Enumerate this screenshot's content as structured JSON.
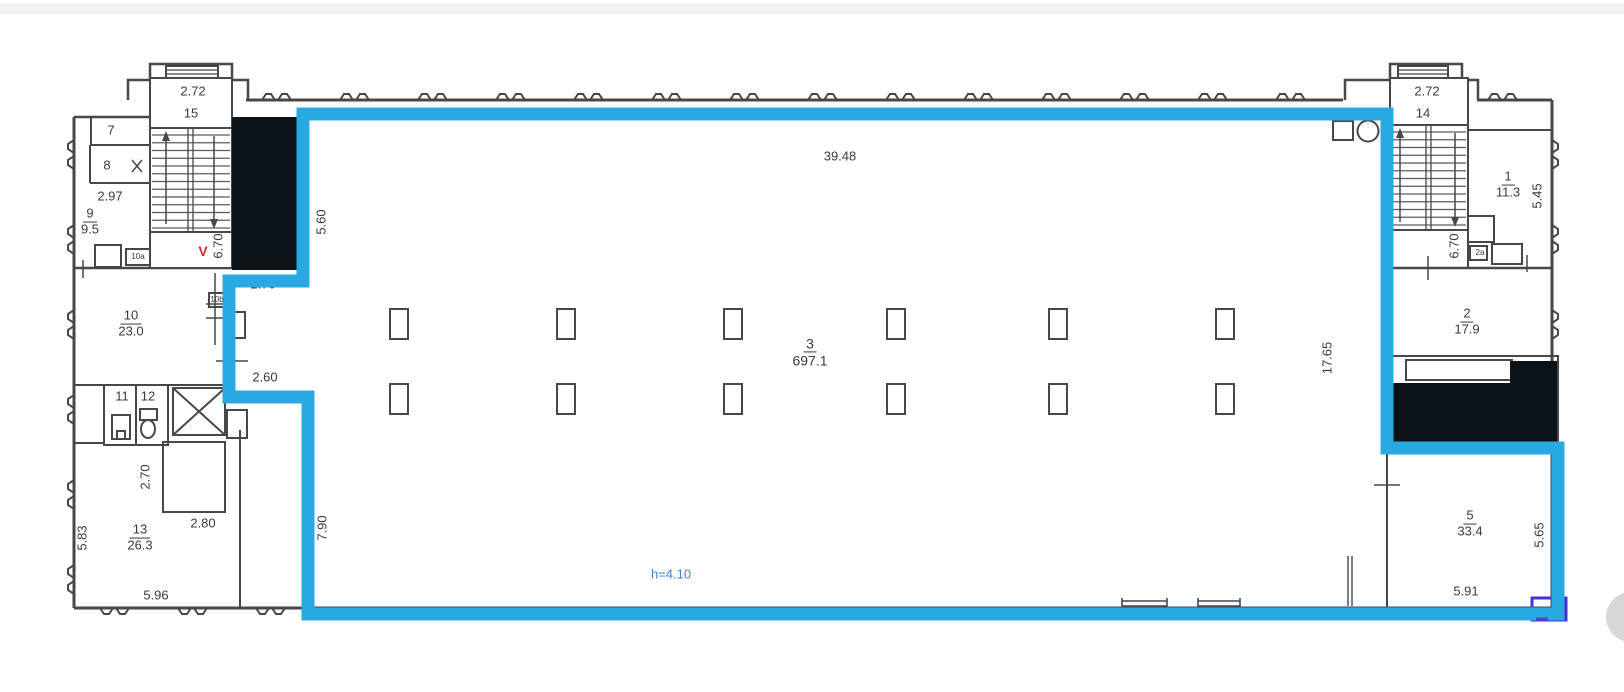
{
  "colors": {
    "highlight_outline": "#29a9e2",
    "wall": "#474747",
    "tread": "#5a5a5a",
    "shaft_fill": "#0c1318",
    "note_blue": "#3c7fd6",
    "vent_red": "#d22b2b",
    "corner_marker": "#4b2fd0",
    "page_circle": "#d7d7d7"
  },
  "hall": {
    "number": "3",
    "area": "697.1",
    "width_dim": "39.48",
    "ceiling_note": "h=4.10"
  },
  "stairwell_left": {
    "width_dim": "2.72",
    "number": "15",
    "depth_dim": "6.70",
    "vent_mark": "V"
  },
  "stairwell_right": {
    "width_dim": "2.72",
    "number": "14",
    "depth_dim": "6.70"
  },
  "rooms": {
    "room1": {
      "number": "1",
      "area": "11.3"
    },
    "room2": {
      "number": "2",
      "area": "17.9"
    },
    "room5": {
      "number": "5",
      "area": "33.4"
    },
    "room7": {
      "number": "7"
    },
    "room8": {
      "number": "8"
    },
    "room9": {
      "number": "9",
      "area": "9.5"
    },
    "room10": {
      "number": "10",
      "area": "23.0"
    },
    "room11": {
      "number": "11"
    },
    "room12": {
      "number": "12"
    },
    "room13": {
      "number": "13",
      "area": "26.3"
    }
  },
  "shaft_labels": {
    "left_a": "10a",
    "left_b": "10b",
    "right_a": "2a"
  },
  "dimensions": {
    "d_297": "2.97",
    "d_270_top": "2.70",
    "d_260": "2.60",
    "d_270_closet": "2.70",
    "d_280": "2.80",
    "d_583": "5.83",
    "d_596": "5.96",
    "d_790": "7.90",
    "d_560": "5.60",
    "d_1765": "17.65",
    "d_545": "5.45",
    "d_565": "5.65",
    "d_591": "5.91"
  }
}
